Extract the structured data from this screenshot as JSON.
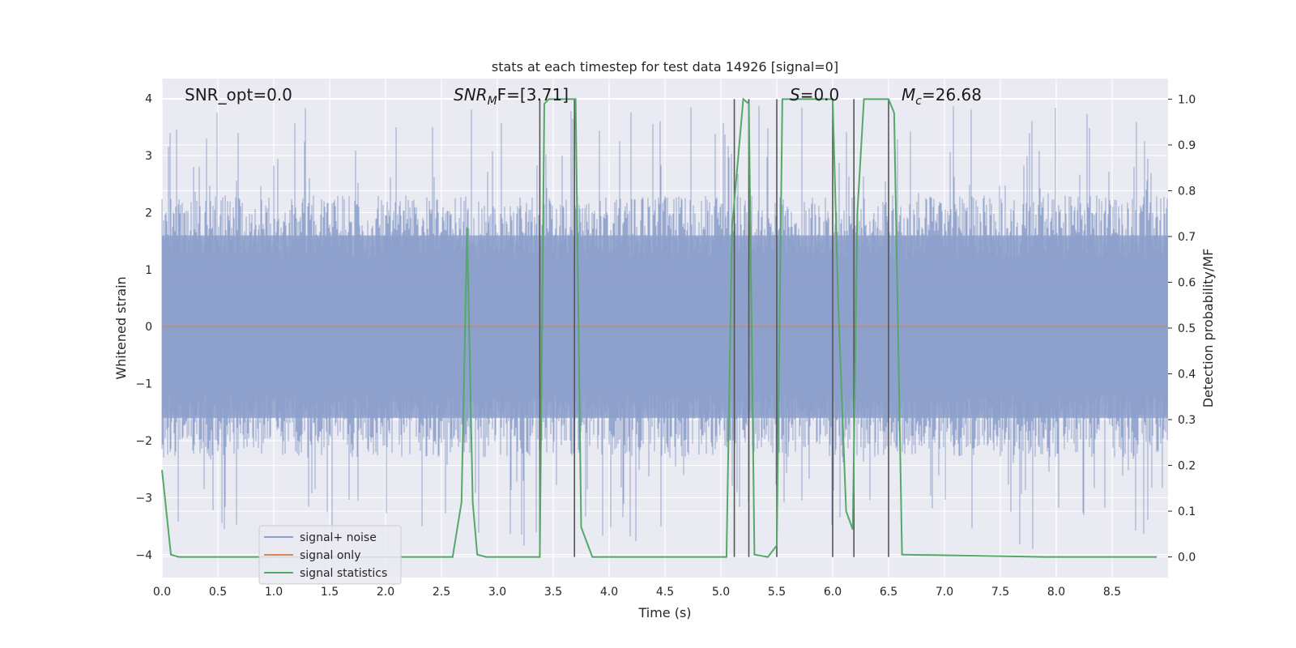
{
  "chart_data": {
    "type": "line",
    "title": "stats at each timestep for test data 14926 [signal=0]",
    "xlabel": "Time (s)",
    "ylabel": "Whitened strain",
    "y2label": "Detection probability/MF",
    "xlim": [
      0.0,
      9.0
    ],
    "ylim": [
      -4.4,
      4.35
    ],
    "y2lim": [
      -0.045,
      1.045
    ],
    "xticks": [
      "0.0",
      "0.5",
      "1.0",
      "1.5",
      "2.0",
      "2.5",
      "3.0",
      "3.5",
      "4.0",
      "4.5",
      "5.0",
      "5.5",
      "6.0",
      "6.5",
      "7.0",
      "7.5",
      "8.0",
      "8.5"
    ],
    "yticks": [
      "−4",
      "−3",
      "−2",
      "−1",
      "0",
      "1",
      "2",
      "3",
      "4"
    ],
    "y2ticks": [
      "0.0",
      "0.1",
      "0.2",
      "0.3",
      "0.4",
      "0.5",
      "0.6",
      "0.7",
      "0.8",
      "0.9",
      "1.0"
    ],
    "grid": true,
    "legend_position": "lower-left",
    "annotations": {
      "snr_opt": "SNR_opt=0.0",
      "snr_mf_main": "SNR",
      "snr_mf_sub": "M",
      "snr_mf_rest": "F=[3.71]",
      "s_main": "S",
      "s_rest": "=0.0",
      "mc_main": "M",
      "mc_sub": "c",
      "mc_rest": "=26.68"
    },
    "colors": {
      "noise": "#8da0cb",
      "signal": "#dd8452",
      "stats": "#55a868",
      "vlines": "#555555",
      "background": "#eaeaf2"
    },
    "series": [
      {
        "name": "signal+ noise",
        "description_type": "noise",
        "amplitude_typical": 1.6,
        "amplitude_peak": 3.9
      },
      {
        "name": "signal only",
        "values_const": 0.0
      },
      {
        "name": "signal statistics",
        "axis": "right",
        "x": [
          0.0,
          0.08,
          0.15,
          0.75,
          2.6,
          2.68,
          2.73,
          2.78,
          2.82,
          2.9,
          3.38,
          3.42,
          3.46,
          3.7,
          3.75,
          3.85,
          5.05,
          5.1,
          5.2,
          5.25,
          5.3,
          5.42,
          5.5,
          5.55,
          5.6,
          6.0,
          6.05,
          6.12,
          6.18,
          6.22,
          6.28,
          6.5,
          6.55,
          6.62,
          7.9,
          8.9
        ],
        "values": [
          0.19,
          0.005,
          0.0,
          0.0,
          0.0,
          0.12,
          0.72,
          0.12,
          0.005,
          0.0,
          0.0,
          0.99,
          1.0,
          1.0,
          0.065,
          0.0,
          0.0,
          0.72,
          1.0,
          0.99,
          0.005,
          0.0,
          0.025,
          1.0,
          1.0,
          1.0,
          0.55,
          0.1,
          0.06,
          0.75,
          1.0,
          1.0,
          0.97,
          0.005,
          0.0,
          0.0
        ]
      }
    ],
    "vlines": [
      3.38,
      3.69,
      5.12,
      5.25,
      5.5,
      6.0,
      6.19,
      6.5
    ]
  }
}
